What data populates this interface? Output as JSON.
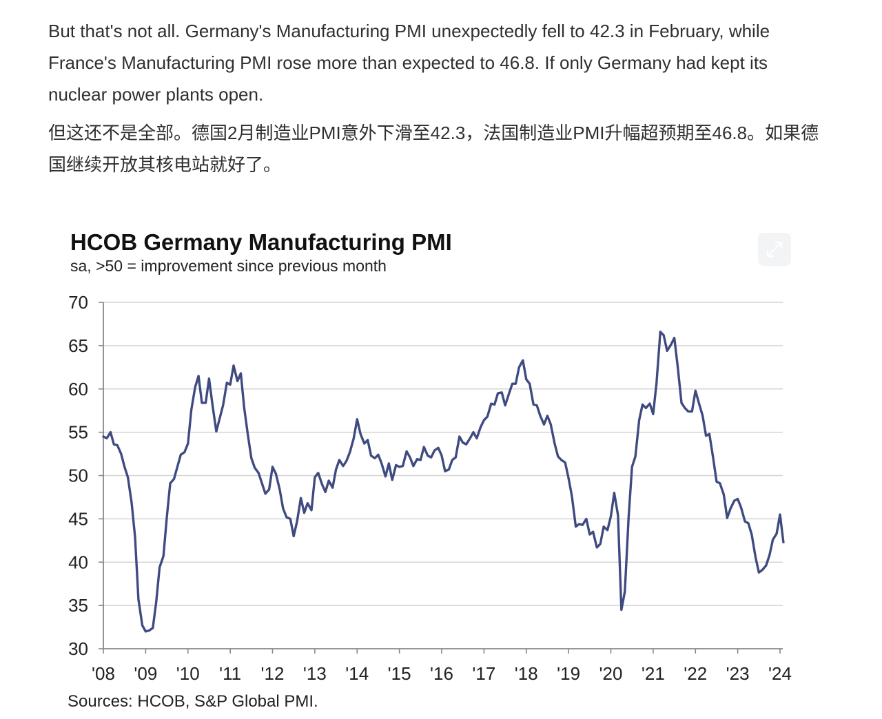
{
  "article": {
    "paragraph_en": "But that's not all. Germany's Manufacturing PMI unexpectedly fell to 42.3 in February, while France's Manufacturing PMI rose more than expected to 46.8. If only Germany had kept its nuclear power plants open.",
    "paragraph_zh": "但这还不是全部。德国2月制造业PMI意外下滑至42.3，法国制造业PMI升幅超预期至46.8。如果德国继续开放其核电站就好了。"
  },
  "expand_icon": "expand-arrows-icon",
  "chart_data": {
    "type": "line",
    "title": "HCOB Germany Manufacturing PMI",
    "subtitle": "sa, >50 = improvement since previous month",
    "source": "Sources: HCOB, S&P Global PMI.",
    "xlabel": "",
    "ylabel": "",
    "ylim": [
      30,
      70
    ],
    "yticks": [
      30,
      35,
      40,
      45,
      50,
      55,
      60,
      65,
      70
    ],
    "xlim": [
      2008,
      2024
    ],
    "xticks": [
      {
        "value": 2008,
        "label": "'08"
      },
      {
        "value": 2009,
        "label": "'09"
      },
      {
        "value": 2010,
        "label": "'10"
      },
      {
        "value": 2011,
        "label": "'11"
      },
      {
        "value": 2012,
        "label": "'12"
      },
      {
        "value": 2013,
        "label": "'13"
      },
      {
        "value": 2014,
        "label": "'14"
      },
      {
        "value": 2015,
        "label": "'15"
      },
      {
        "value": 2016,
        "label": "'16"
      },
      {
        "value": 2017,
        "label": "'17"
      },
      {
        "value": 2018,
        "label": "'18"
      },
      {
        "value": 2019,
        "label": "'19"
      },
      {
        "value": 2020,
        "label": "'20"
      },
      {
        "value": 2021,
        "label": "'21"
      },
      {
        "value": 2022,
        "label": "'22"
      },
      {
        "value": 2023,
        "label": "'23"
      },
      {
        "value": 2024,
        "label": "'24"
      }
    ],
    "grid": true,
    "line_color": "#3f4b80",
    "series": [
      {
        "x": [
          2008.0,
          2008.08,
          2008.17,
          2008.25,
          2008.33,
          2008.42,
          2008.5,
          2008.58,
          2008.67,
          2008.75,
          2008.83,
          2008.92,
          2009.0,
          2009.08,
          2009.17,
          2009.25,
          2009.33,
          2009.42,
          2009.5,
          2009.58,
          2009.67,
          2009.75,
          2009.83,
          2009.92,
          2010.0,
          2010.08,
          2010.17,
          2010.25,
          2010.33,
          2010.42,
          2010.5,
          2010.58,
          2010.67,
          2010.75,
          2010.83,
          2010.92,
          2011.0,
          2011.08,
          2011.17,
          2011.25,
          2011.33,
          2011.42,
          2011.5,
          2011.58,
          2011.67,
          2011.75,
          2011.83,
          2011.92,
          2012.0,
          2012.08,
          2012.17,
          2012.25,
          2012.33,
          2012.42,
          2012.5,
          2012.58,
          2012.67,
          2012.75,
          2012.83,
          2012.92,
          2013.0,
          2013.08,
          2013.17,
          2013.25,
          2013.33,
          2013.42,
          2013.5,
          2013.58,
          2013.67,
          2013.75,
          2013.83,
          2013.92,
          2014.0,
          2014.08,
          2014.17,
          2014.25,
          2014.33,
          2014.42,
          2014.5,
          2014.58,
          2014.67,
          2014.75,
          2014.83,
          2014.92,
          2015.0,
          2015.08,
          2015.17,
          2015.25,
          2015.33,
          2015.42,
          2015.5,
          2015.58,
          2015.67,
          2015.75,
          2015.83,
          2015.92,
          2016.0,
          2016.08,
          2016.17,
          2016.25,
          2016.33,
          2016.42,
          2016.5,
          2016.58,
          2016.67,
          2016.75,
          2016.83,
          2016.92,
          2017.0,
          2017.08,
          2017.17,
          2017.25,
          2017.33,
          2017.42,
          2017.5,
          2017.58,
          2017.67,
          2017.75,
          2017.83,
          2017.92,
          2018.0,
          2018.08,
          2018.17,
          2018.25,
          2018.33,
          2018.42,
          2018.5,
          2018.58,
          2018.67,
          2018.75,
          2018.83,
          2018.92,
          2019.0,
          2019.08,
          2019.17,
          2019.25,
          2019.33,
          2019.42,
          2019.5,
          2019.58,
          2019.67,
          2019.75,
          2019.83,
          2019.92,
          2020.0,
          2020.08,
          2020.17,
          2020.25,
          2020.33,
          2020.42,
          2020.5,
          2020.58,
          2020.67,
          2020.75,
          2020.83,
          2020.92,
          2021.0,
          2021.08,
          2021.17,
          2021.25,
          2021.33,
          2021.42,
          2021.5,
          2021.58,
          2021.67,
          2021.75,
          2021.83,
          2021.92,
          2022.0,
          2022.08,
          2022.17,
          2022.25,
          2022.33,
          2022.42,
          2022.5,
          2022.58,
          2022.67,
          2022.75,
          2022.83,
          2022.92,
          2023.0,
          2023.08,
          2023.17,
          2023.25,
          2023.33,
          2023.42,
          2023.5,
          2023.58,
          2023.67,
          2023.75,
          2023.83,
          2023.92,
          2024.0,
          2024.08
        ],
        "values": [
          54.5,
          54.3,
          55.0,
          53.6,
          53.5,
          52.5,
          51.0,
          49.8,
          46.8,
          42.9,
          35.7,
          32.7,
          32.0,
          32.1,
          32.4,
          35.4,
          39.4,
          40.7,
          45.2,
          49.1,
          49.6,
          51.0,
          52.4,
          52.7,
          53.7,
          57.6,
          60.2,
          61.5,
          58.4,
          58.4,
          61.2,
          58.2,
          55.1,
          56.6,
          58.1,
          60.7,
          60.5,
          62.7,
          60.9,
          61.8,
          57.8,
          54.6,
          52.0,
          50.9,
          50.3,
          49.1,
          47.9,
          48.4,
          51.0,
          50.2,
          48.4,
          46.2,
          45.2,
          45.0,
          43.0,
          44.7,
          47.4,
          45.7,
          46.8,
          46.0,
          49.8,
          50.3,
          49.0,
          48.1,
          49.4,
          48.6,
          50.7,
          51.8,
          51.1,
          51.7,
          52.7,
          54.3,
          56.5,
          54.8,
          53.7,
          54.1,
          52.3,
          52.0,
          52.4,
          51.4,
          49.9,
          51.4,
          49.5,
          51.2,
          51.0,
          51.1,
          52.8,
          52.1,
          51.1,
          51.9,
          51.8,
          53.3,
          52.3,
          52.1,
          52.9,
          53.2,
          52.3,
          50.5,
          50.7,
          51.8,
          52.1,
          54.5,
          53.8,
          53.6,
          54.3,
          55.0,
          54.3,
          55.6,
          56.4,
          56.8,
          58.3,
          58.2,
          59.5,
          59.6,
          58.1,
          59.3,
          60.6,
          60.6,
          62.5,
          63.3,
          61.1,
          60.6,
          58.2,
          58.1,
          56.9,
          55.9,
          56.9,
          55.9,
          53.7,
          52.2,
          51.8,
          51.5,
          49.7,
          47.6,
          44.1,
          44.4,
          44.3,
          45.0,
          43.2,
          43.5,
          41.7,
          42.1,
          44.1,
          43.7,
          45.3,
          48.0,
          45.4,
          34.5,
          36.6,
          45.2,
          51.0,
          52.2,
          56.4,
          58.2,
          57.8,
          58.3,
          57.1,
          60.7,
          66.6,
          66.2,
          64.4,
          65.1,
          65.9,
          62.6,
          58.4,
          57.8,
          57.4,
          57.4,
          59.8,
          58.4,
          56.9,
          54.6,
          54.8,
          52.0,
          49.3,
          49.1,
          47.8,
          45.1,
          46.2,
          47.1,
          47.3,
          46.3,
          44.7,
          44.5,
          43.2,
          40.6,
          38.8,
          39.1,
          39.6,
          40.8,
          42.6,
          43.3,
          45.5,
          42.3
        ]
      }
    ]
  }
}
